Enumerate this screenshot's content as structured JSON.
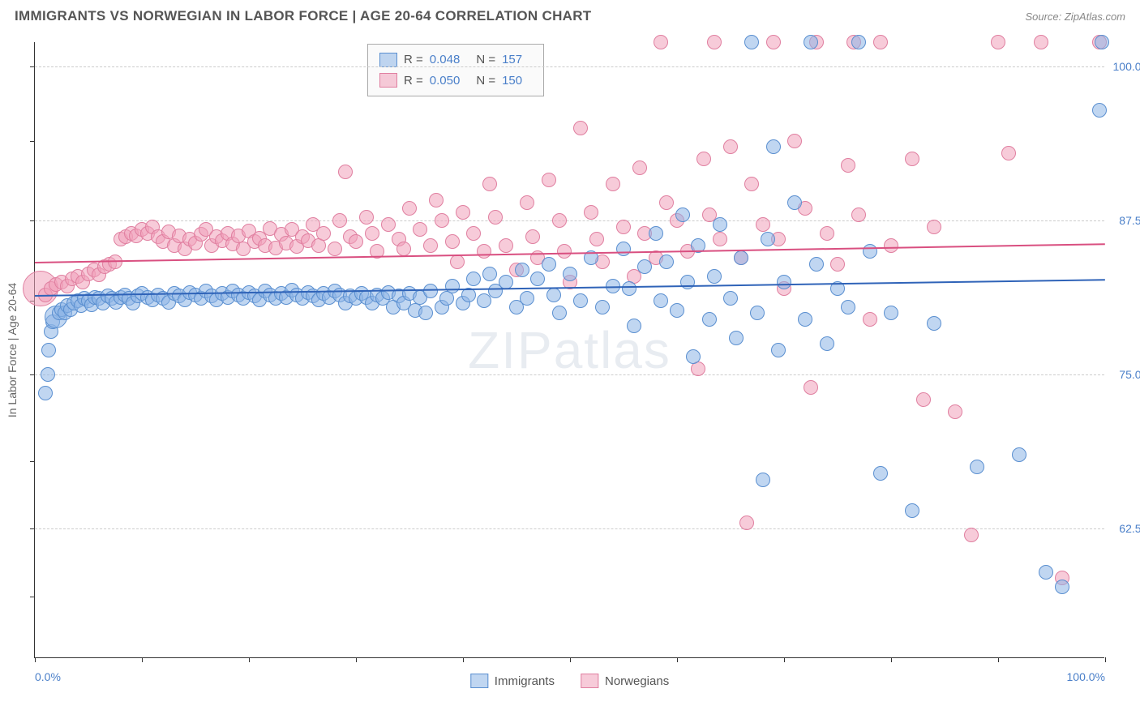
{
  "title": "IMMIGRANTS VS NORWEGIAN IN LABOR FORCE | AGE 20-64 CORRELATION CHART",
  "source": "Source: ZipAtlas.com",
  "yaxis_label": "In Labor Force | Age 20-64",
  "watermark": "ZIPatlas",
  "chart": {
    "type": "scatter",
    "xlim": [
      0,
      100
    ],
    "ylim": [
      52,
      102
    ],
    "background_color": "#ffffff",
    "grid_color": "#cccccc",
    "axis_color": "#333333",
    "point_radius_default": 9,
    "point_border_width": 1.5,
    "yticks": [
      {
        "y": 62.5,
        "label": "62.5%"
      },
      {
        "y": 75.0,
        "label": "75.0%"
      },
      {
        "y": 87.5,
        "label": "87.5%"
      },
      {
        "y": 100.0,
        "label": "100.0%"
      }
    ],
    "xticks_minor": [
      0,
      10,
      20,
      30,
      40,
      50,
      60,
      70,
      80,
      90,
      100
    ],
    "xticks_labeled": [
      {
        "x": 0,
        "label": "0.0%"
      },
      {
        "x": 100,
        "label": "100.0%"
      }
    ],
    "yticks_minor": [
      57,
      62.5,
      68,
      75,
      81,
      87.5,
      94,
      100
    ],
    "series": [
      {
        "name": "Immigrants",
        "fill_color": "rgba(140,180,230,0.55)",
        "stroke_color": "#5a8fd0",
        "trend_color": "#2f63b8",
        "trend": {
          "y_at_x0": 81.5,
          "y_at_x100": 82.8
        },
        "R": "0.048",
        "N": "157",
        "points": [
          [
            1,
            73.5
          ],
          [
            1.2,
            75
          ],
          [
            1.3,
            77
          ],
          [
            1.5,
            78.5
          ],
          [
            1.7,
            79.3
          ],
          [
            2,
            79.7,
            14
          ],
          [
            2.3,
            80
          ],
          [
            2.5,
            80.3
          ],
          [
            2.8,
            80
          ],
          [
            3,
            80.6
          ],
          [
            3.3,
            80.3
          ],
          [
            3.6,
            80.8
          ],
          [
            4,
            81
          ],
          [
            4.3,
            80.6
          ],
          [
            4.6,
            81.2
          ],
          [
            5,
            81
          ],
          [
            5.3,
            80.7
          ],
          [
            5.6,
            81.3
          ],
          [
            6,
            81.2
          ],
          [
            6.4,
            80.8
          ],
          [
            6.8,
            81.4
          ],
          [
            7.2,
            81.2
          ],
          [
            7.6,
            80.9
          ],
          [
            8,
            81.3
          ],
          [
            8.4,
            81.5
          ],
          [
            8.8,
            81.2
          ],
          [
            9.2,
            80.8
          ],
          [
            9.6,
            81.4
          ],
          [
            10,
            81.6
          ],
          [
            10.5,
            81.3
          ],
          [
            11,
            81.1
          ],
          [
            11.5,
            81.5
          ],
          [
            12,
            81.2
          ],
          [
            12.5,
            80.9
          ],
          [
            13,
            81.6
          ],
          [
            13.5,
            81.4
          ],
          [
            14,
            81.1
          ],
          [
            14.5,
            81.7
          ],
          [
            15,
            81.5
          ],
          [
            15.5,
            81.2
          ],
          [
            16,
            81.8
          ],
          [
            16.5,
            81.4
          ],
          [
            17,
            81.1
          ],
          [
            17.5,
            81.6
          ],
          [
            18,
            81.3
          ],
          [
            18.5,
            81.8
          ],
          [
            19,
            81.5
          ],
          [
            19.5,
            81.2
          ],
          [
            20,
            81.7
          ],
          [
            20.5,
            81.4
          ],
          [
            21,
            81.1
          ],
          [
            21.5,
            81.8
          ],
          [
            22,
            81.5
          ],
          [
            22.5,
            81.2
          ],
          [
            23,
            81.6
          ],
          [
            23.5,
            81.3
          ],
          [
            24,
            81.9
          ],
          [
            24.5,
            81.5
          ],
          [
            25,
            81.2
          ],
          [
            25.5,
            81.7
          ],
          [
            26,
            81.4
          ],
          [
            26.5,
            81.1
          ],
          [
            27,
            81.6
          ],
          [
            27.5,
            81.3
          ],
          [
            28,
            81.8
          ],
          [
            28.5,
            81.5
          ],
          [
            29,
            80.8
          ],
          [
            29.5,
            81.4
          ],
          [
            30,
            81.2
          ],
          [
            30.5,
            81.6
          ],
          [
            31,
            81.3
          ],
          [
            31.5,
            80.8
          ],
          [
            32,
            81.5
          ],
          [
            32.5,
            81.2
          ],
          [
            33,
            81.7
          ],
          [
            33.5,
            80.5
          ],
          [
            34,
            81.4
          ],
          [
            34.5,
            80.8
          ],
          [
            35,
            81.6
          ],
          [
            35.5,
            80.2
          ],
          [
            36,
            81.3
          ],
          [
            36.5,
            80
          ],
          [
            37,
            81.8
          ],
          [
            38,
            80.5
          ],
          [
            38.5,
            81.2
          ],
          [
            39,
            82.2
          ],
          [
            40,
            80.8
          ],
          [
            40.5,
            81.5
          ],
          [
            41,
            82.8
          ],
          [
            42,
            81
          ],
          [
            42.5,
            83.2
          ],
          [
            43,
            81.8
          ],
          [
            44,
            82.5
          ],
          [
            45,
            80.5
          ],
          [
            45.5,
            83.5
          ],
          [
            46,
            81.2
          ],
          [
            47,
            82.8
          ],
          [
            48,
            84
          ],
          [
            48.5,
            81.5
          ],
          [
            49,
            80
          ],
          [
            50,
            83.2
          ],
          [
            51,
            81
          ],
          [
            52,
            84.5
          ],
          [
            53,
            80.5
          ],
          [
            54,
            82.2
          ],
          [
            55,
            85.2
          ],
          [
            55.5,
            82
          ],
          [
            56,
            79
          ],
          [
            57,
            83.8
          ],
          [
            58,
            86.5
          ],
          [
            58.5,
            81
          ],
          [
            59,
            84.2
          ],
          [
            60,
            80.2
          ],
          [
            60.5,
            88
          ],
          [
            61,
            82.5
          ],
          [
            61.5,
            76.5
          ],
          [
            62,
            85.5
          ],
          [
            63,
            79.5
          ],
          [
            63.5,
            83
          ],
          [
            64,
            87.2
          ],
          [
            65,
            81.2
          ],
          [
            65.5,
            78
          ],
          [
            66,
            84.5
          ],
          [
            67,
            102
          ],
          [
            67.5,
            80
          ],
          [
            68,
            66.5
          ],
          [
            68.5,
            86
          ],
          [
            69,
            93.5
          ],
          [
            69.5,
            77
          ],
          [
            70,
            82.5
          ],
          [
            71,
            89
          ],
          [
            72,
            79.5
          ],
          [
            72.5,
            102
          ],
          [
            73,
            84
          ],
          [
            74,
            77.5
          ],
          [
            75,
            82
          ],
          [
            76,
            80.5
          ],
          [
            77,
            102
          ],
          [
            78,
            85
          ],
          [
            79,
            67
          ],
          [
            80,
            80
          ],
          [
            82,
            64
          ],
          [
            84,
            79.2
          ],
          [
            88,
            67.5
          ],
          [
            92,
            68.5
          ],
          [
            94.5,
            59
          ],
          [
            96,
            57.8
          ],
          [
            99.5,
            96.5
          ],
          [
            99.7,
            102
          ]
        ]
      },
      {
        "name": "Norwegians",
        "fill_color": "rgba(240,160,185,0.55)",
        "stroke_color": "#e07fa0",
        "trend_color": "#d94f80",
        "trend": {
          "y_at_x0": 84.2,
          "y_at_x100": 85.7
        },
        "R": "0.050",
        "N": "150",
        "points": [
          [
            0.5,
            82,
            22
          ],
          [
            1,
            81.5
          ],
          [
            1.5,
            82
          ],
          [
            2,
            82.3
          ],
          [
            2.5,
            82.5
          ],
          [
            3,
            82.2
          ],
          [
            3.5,
            82.8
          ],
          [
            4,
            83
          ],
          [
            4.5,
            82.5
          ],
          [
            5,
            83.2
          ],
          [
            5.5,
            83.5
          ],
          [
            6,
            83.1
          ],
          [
            6.5,
            83.8
          ],
          [
            7,
            84
          ],
          [
            7.5,
            84.2
          ],
          [
            8,
            86
          ],
          [
            8.5,
            86.2
          ],
          [
            9,
            86.5
          ],
          [
            9.5,
            86.3
          ],
          [
            10,
            86.8
          ],
          [
            10.5,
            86.5
          ],
          [
            11,
            87
          ],
          [
            11.5,
            86.2
          ],
          [
            12,
            85.8
          ],
          [
            12.5,
            86.6
          ],
          [
            13,
            85.5
          ],
          [
            13.5,
            86.3
          ],
          [
            14,
            85.2
          ],
          [
            14.5,
            86
          ],
          [
            15,
            85.7
          ],
          [
            15.5,
            86.4
          ],
          [
            16,
            86.8
          ],
          [
            16.5,
            85.5
          ],
          [
            17,
            86.2
          ],
          [
            17.5,
            85.9
          ],
          [
            18,
            86.5
          ],
          [
            18.5,
            85.6
          ],
          [
            19,
            86.3
          ],
          [
            19.5,
            85.2
          ],
          [
            20,
            86.7
          ],
          [
            20.5,
            85.8
          ],
          [
            21,
            86.1
          ],
          [
            21.5,
            85.5
          ],
          [
            22,
            86.9
          ],
          [
            22.5,
            85.3
          ],
          [
            23,
            86.4
          ],
          [
            23.5,
            85.7
          ],
          [
            24,
            86.8
          ],
          [
            24.5,
            85.4
          ],
          [
            25,
            86.2
          ],
          [
            25.5,
            85.9
          ],
          [
            26,
            87.2
          ],
          [
            26.5,
            85.5
          ],
          [
            27,
            86.5
          ],
          [
            28,
            85.2
          ],
          [
            28.5,
            87.5
          ],
          [
            29,
            91.5
          ],
          [
            29.5,
            86.2
          ],
          [
            30,
            85.8
          ],
          [
            31,
            87.8
          ],
          [
            31.5,
            86.5
          ],
          [
            32,
            85
          ],
          [
            33,
            87.2
          ],
          [
            34,
            86
          ],
          [
            34.5,
            85.2
          ],
          [
            35,
            88.5
          ],
          [
            36,
            86.8
          ],
          [
            37,
            85.5
          ],
          [
            37.5,
            89.2
          ],
          [
            38,
            87.5
          ],
          [
            39,
            85.8
          ],
          [
            39.5,
            84.2
          ],
          [
            40,
            88.2
          ],
          [
            41,
            86.5
          ],
          [
            42,
            85
          ],
          [
            42.5,
            90.5
          ],
          [
            43,
            87.8
          ],
          [
            44,
            85.5
          ],
          [
            45,
            83.5
          ],
          [
            46,
            89
          ],
          [
            46.5,
            86.2
          ],
          [
            47,
            84.5
          ],
          [
            48,
            90.8
          ],
          [
            49,
            87.5
          ],
          [
            49.5,
            85
          ],
          [
            50,
            82.5
          ],
          [
            51,
            95
          ],
          [
            52,
            88.2
          ],
          [
            52.5,
            86
          ],
          [
            53,
            84.2
          ],
          [
            54,
            90.5
          ],
          [
            55,
            87
          ],
          [
            56,
            83
          ],
          [
            56.5,
            91.8
          ],
          [
            57,
            86.5
          ],
          [
            58,
            84.5
          ],
          [
            58.5,
            102
          ],
          [
            59,
            89
          ],
          [
            60,
            87.5
          ],
          [
            61,
            85
          ],
          [
            62,
            75.5
          ],
          [
            62.5,
            92.5
          ],
          [
            63,
            88
          ],
          [
            63.5,
            102
          ],
          [
            64,
            86
          ],
          [
            65,
            93.5
          ],
          [
            66,
            84.5
          ],
          [
            66.5,
            63
          ],
          [
            67,
            90.5
          ],
          [
            68,
            87.2
          ],
          [
            69,
            102
          ],
          [
            69.5,
            86
          ],
          [
            70,
            82
          ],
          [
            71,
            94
          ],
          [
            72,
            88.5
          ],
          [
            72.5,
            74
          ],
          [
            73,
            102
          ],
          [
            74,
            86.5
          ],
          [
            75,
            84
          ],
          [
            76,
            92
          ],
          [
            76.5,
            102
          ],
          [
            77,
            88
          ],
          [
            78,
            79.5
          ],
          [
            79,
            102
          ],
          [
            80,
            85.5
          ],
          [
            82,
            92.5
          ],
          [
            83,
            73
          ],
          [
            84,
            87
          ],
          [
            86,
            72
          ],
          [
            87.5,
            62
          ],
          [
            90,
            102
          ],
          [
            91,
            93
          ],
          [
            94,
            102
          ],
          [
            96,
            58.5
          ],
          [
            99.5,
            102
          ]
        ]
      }
    ]
  },
  "legend_bottom": [
    {
      "label": "Immigrants",
      "swatch_fill": "rgba(140,180,230,0.55)",
      "swatch_border": "#5a8fd0"
    },
    {
      "label": "Norwegians",
      "swatch_fill": "rgba(240,160,185,0.55)",
      "swatch_border": "#e07fa0"
    }
  ]
}
